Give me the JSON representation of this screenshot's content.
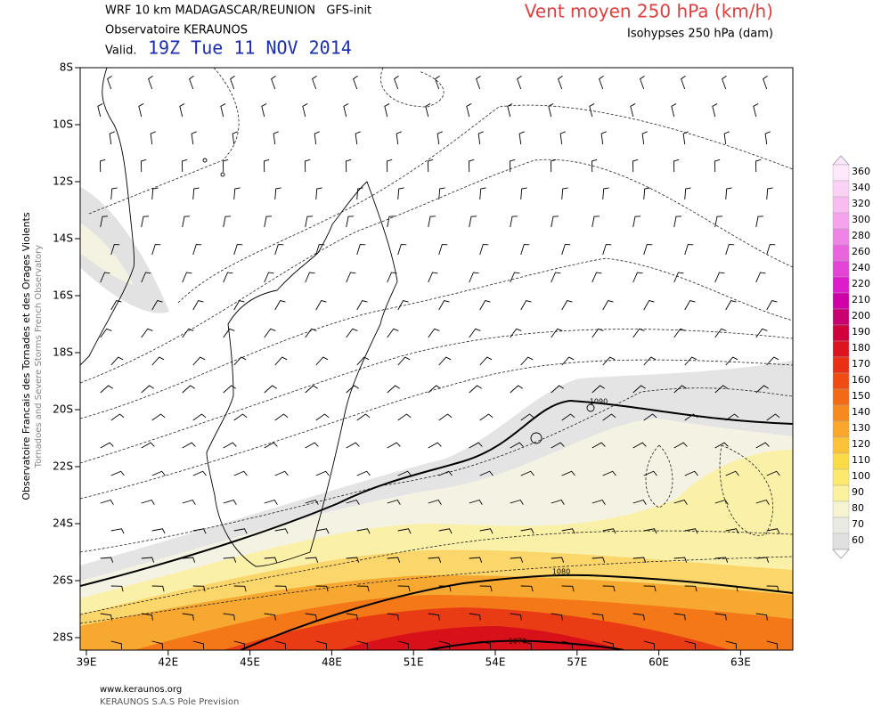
{
  "header": {
    "model": "WRF 10 km MADAGASCAR/REUNION   GFS-init",
    "observatory": "Observatoire KERAUNOS",
    "valid_label": "Valid.",
    "valid_time": "19Z Tue 11 NOV 2014",
    "title": "Vent moyen 250 hPa (km/h)",
    "subtitle": "Isohypses 250 hPa (dam)"
  },
  "side_text": [
    "Observatoire Francais des Tornades et des Orages Violents",
    "Tornadoes and Severe Storms French Observatory"
  ],
  "axes": {
    "latitudes": [
      "8S",
      "10S",
      "12S",
      "14S",
      "16S",
      "18S",
      "20S",
      "22S",
      "24S",
      "26S",
      "28S"
    ],
    "longitudes": [
      "39E",
      "42E",
      "45E",
      "48E",
      "51E",
      "54E",
      "57E",
      "60E",
      "63E"
    ]
  },
  "contour_labels": [
    "1090",
    "1080",
    "1070"
  ],
  "legend": [
    {
      "label": "360",
      "color": "#fde8fb"
    },
    {
      "label": "340",
      "color": "#fbd2f6"
    },
    {
      "label": "320",
      "color": "#f8bcf1"
    },
    {
      "label": "300",
      "color": "#f4a2ec"
    },
    {
      "label": "280",
      "color": "#ef84e6"
    },
    {
      "label": "260",
      "color": "#ea64de"
    },
    {
      "label": "240",
      "color": "#e444d6"
    },
    {
      "label": "220",
      "color": "#dc1ccc"
    },
    {
      "label": "210",
      "color": "#d000a8"
    },
    {
      "label": "200",
      "color": "#c80070"
    },
    {
      "label": "190",
      "color": "#d0003c"
    },
    {
      "label": "180",
      "color": "#dc1420"
    },
    {
      "label": "170",
      "color": "#ea3014"
    },
    {
      "label": "160",
      "color": "#f04c12"
    },
    {
      "label": "150",
      "color": "#f46a14"
    },
    {
      "label": "140",
      "color": "#f78a1c"
    },
    {
      "label": "130",
      "color": "#f9a62a"
    },
    {
      "label": "120",
      "color": "#fbc238"
    },
    {
      "label": "110",
      "color": "#fcdc46"
    },
    {
      "label": "100",
      "color": "#fde96c"
    },
    {
      "label": "90",
      "color": "#fcf19e"
    },
    {
      "label": "80",
      "color": "#f6f3d0"
    },
    {
      "label": "70",
      "color": "#eaeae4"
    },
    {
      "label": "60",
      "color": "#e0e0e0"
    }
  ],
  "footer": {
    "url": "www.keraunos.org",
    "company": "KERAUNOS S.A.S Pole Prevision"
  }
}
